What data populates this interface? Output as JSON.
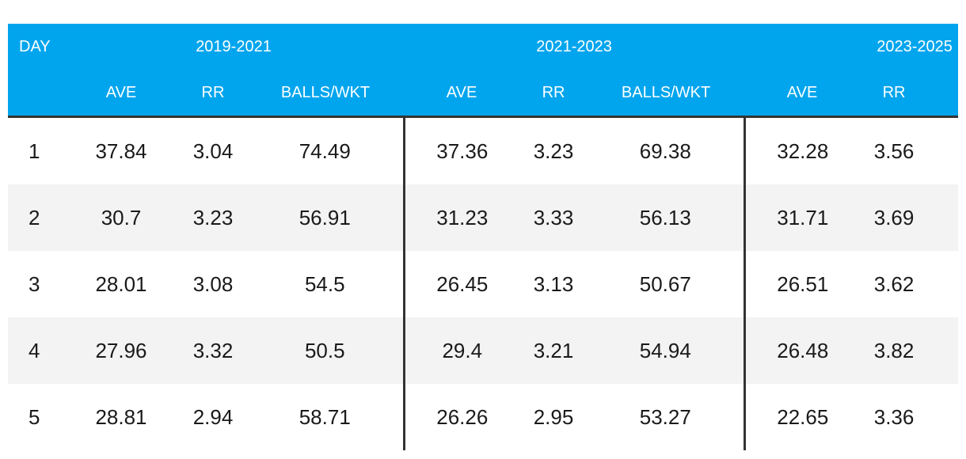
{
  "chart_data": {
    "type": "table",
    "first_column_header": "DAY",
    "period_headers": [
      "2019-2021",
      "2021-2023",
      "2023-2025"
    ],
    "sub_headers": [
      "AVE",
      "RR",
      "BALLS/WKT"
    ],
    "rows": [
      {
        "day": "1",
        "values": [
          [
            "37.84",
            "3.04",
            "74.49"
          ],
          [
            "37.36",
            "3.23",
            "69.38"
          ],
          [
            "32.28",
            "3.56",
            ""
          ]
        ]
      },
      {
        "day": "2",
        "values": [
          [
            "30.7",
            "3.23",
            "56.91"
          ],
          [
            "31.23",
            "3.33",
            "56.13"
          ],
          [
            "31.71",
            "3.69",
            ""
          ]
        ]
      },
      {
        "day": "3",
        "values": [
          [
            "28.01",
            "3.08",
            "54.5"
          ],
          [
            "26.45",
            "3.13",
            "50.67"
          ],
          [
            "26.51",
            "3.62",
            ""
          ]
        ]
      },
      {
        "day": "4",
        "values": [
          [
            "27.96",
            "3.32",
            "50.5"
          ],
          [
            "29.4",
            "3.21",
            "54.94"
          ],
          [
            "26.48",
            "3.82",
            ""
          ]
        ]
      },
      {
        "day": "5",
        "values": [
          [
            "28.81",
            "2.94",
            "58.71"
          ],
          [
            "26.26",
            "2.95",
            "53.27"
          ],
          [
            "22.65",
            "3.36",
            ""
          ]
        ]
      }
    ]
  },
  "colors": {
    "header_bg": "#00a5ee",
    "header_text": "#ffffff",
    "stripe_bg": "#f3f3f3",
    "divider": "#333333"
  }
}
